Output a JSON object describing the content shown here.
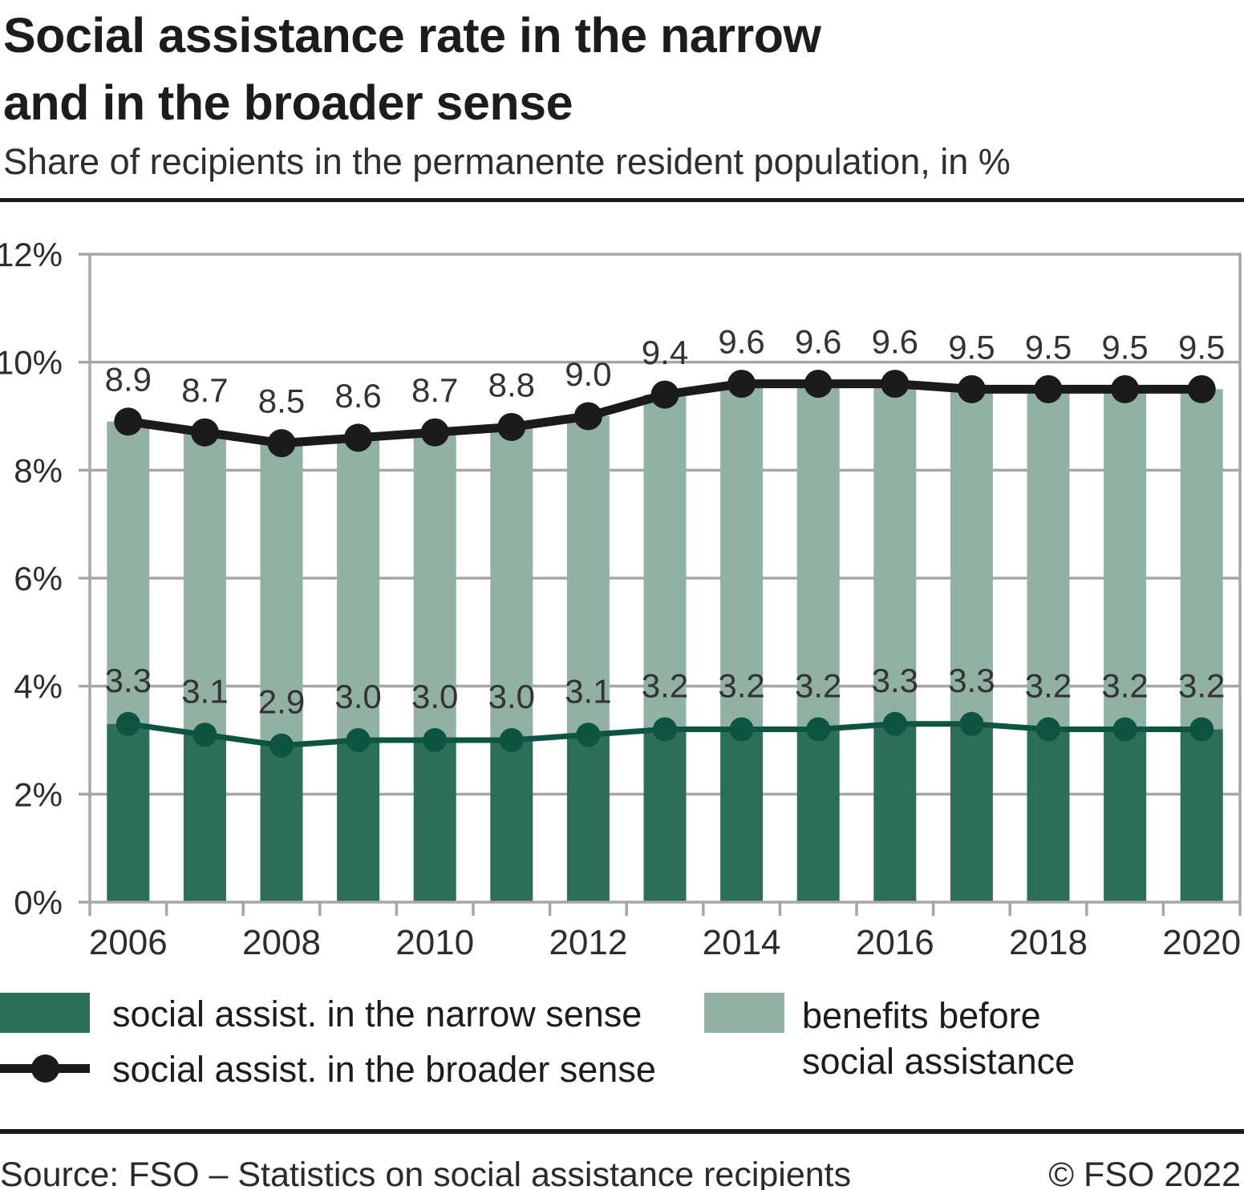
{
  "header": {
    "title": "Social assistance rate in the narrow\nand in the broader sense",
    "subtitle": "Share of recipients in the permanente resident population, in %"
  },
  "colors": {
    "narrow_bar": "#2d6e58",
    "narrow_line": "#0e5443",
    "broader_line": "#1b1b1b",
    "benefits_bar": "#91b1a3",
    "grid": "#a6a6a6",
    "text": "#1c1c1c"
  },
  "chart_data": {
    "type": "combo",
    "title": "Social assistance rate in the narrow and in the broader sense",
    "subtitle": "Share of recipients in the permanente resident population, in %",
    "categories": [
      "2006",
      "2007",
      "2008",
      "2009",
      "2010",
      "2011",
      "2012",
      "2013",
      "2014",
      "2015",
      "2016",
      "2017",
      "2018",
      "2019",
      "2020"
    ],
    "x_axis_labeled_categories": [
      "2006",
      "2008",
      "2010",
      "2012",
      "2014",
      "2016",
      "2018",
      "2020"
    ],
    "ylim": [
      0,
      12
    ],
    "ytick_step": 2,
    "ytick_suffix": "%",
    "grid": true,
    "value_labels_decimals": 1,
    "legend_position": "bottom",
    "series": [
      {
        "name": "social assist. in the narrow sense",
        "type": "bar",
        "color": "#2d6e58",
        "marker_line_color": "#0e5443",
        "values": [
          3.3,
          3.1,
          2.9,
          3.0,
          3.0,
          3.0,
          3.1,
          3.2,
          3.2,
          3.2,
          3.3,
          3.3,
          3.2,
          3.2,
          3.2
        ]
      },
      {
        "name": "social assist. in the broader sense",
        "type": "line",
        "color": "#1b1b1b",
        "values": [
          8.9,
          8.7,
          8.5,
          8.6,
          8.7,
          8.8,
          9.0,
          9.4,
          9.6,
          9.6,
          9.6,
          9.5,
          9.5,
          9.5,
          9.5
        ]
      },
      {
        "name": "benefits before social assistance",
        "type": "bar-segment",
        "color": "#91b1a3",
        "note": "stacked segment spanning from the narrow-sense value up to the broader-sense value"
      }
    ]
  },
  "legend": {
    "items": [
      {
        "label": "social assist. in the narrow sense",
        "marker": "square",
        "color": "#2d6e58"
      },
      {
        "label": "social assist. in the broader sense",
        "marker": "line-dot",
        "color": "#1b1b1b"
      },
      {
        "label": "benefits before\nsocial assistance",
        "marker": "square",
        "color": "#91b1a3"
      }
    ]
  },
  "footer": {
    "source": "Source: FSO – Statistics on social assistance recipients",
    "copyright": "© FSO 2022"
  }
}
